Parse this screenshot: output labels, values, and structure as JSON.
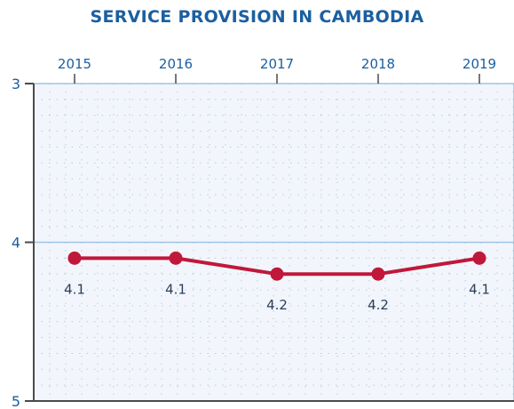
{
  "colors": {
    "title": "#1b5fa0",
    "axis_text": "#1b5fa0",
    "data_label": "#2a3f5a",
    "line": "#c0183a",
    "plot_bg": "#f2f6fc",
    "plot_border": "#9ec3e4",
    "grid_dots": "#bcc9d8",
    "axis_line": "#4a4a4a"
  },
  "chart_data": {
    "type": "line",
    "title": "SERVICE PROVISION IN CAMBODIA",
    "xlabel": "",
    "ylabel": "",
    "x_axis_position": "top",
    "y_axis_inverted": true,
    "categories": [
      "2015",
      "2016",
      "2017",
      "2018",
      "2019"
    ],
    "series": [
      {
        "values": [
          4.1,
          4.1,
          4.2,
          4.2,
          4.1
        ]
      }
    ],
    "data_labels": [
      "4.1",
      "4.1",
      "4.2",
      "4.2",
      "4.1"
    ],
    "y_ticks": [
      "3",
      "4",
      "5"
    ],
    "ylim": [
      3,
      5
    ],
    "grid": true,
    "legend": "none"
  }
}
